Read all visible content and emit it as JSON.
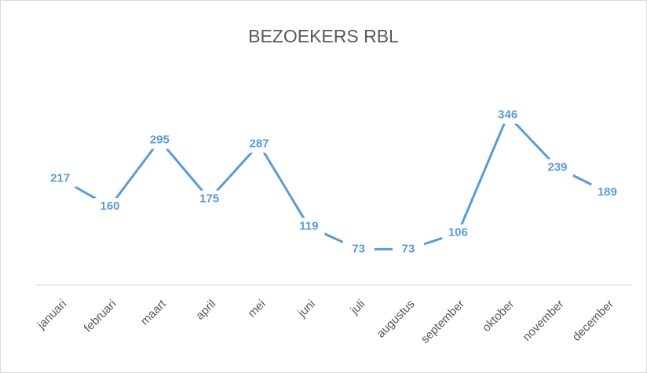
{
  "chart_data": {
    "type": "line",
    "title": "BEZOEKERS RBL",
    "categories": [
      "januari",
      "februari",
      "maart",
      "april",
      "mei",
      "juni",
      "juli",
      "augustus",
      "september",
      "oktober",
      "november",
      "december"
    ],
    "values": [
      217,
      160,
      295,
      175,
      287,
      119,
      73,
      73,
      106,
      346,
      239,
      189
    ],
    "color": "#5b9bd5",
    "ylim": [
      0,
      400
    ]
  }
}
